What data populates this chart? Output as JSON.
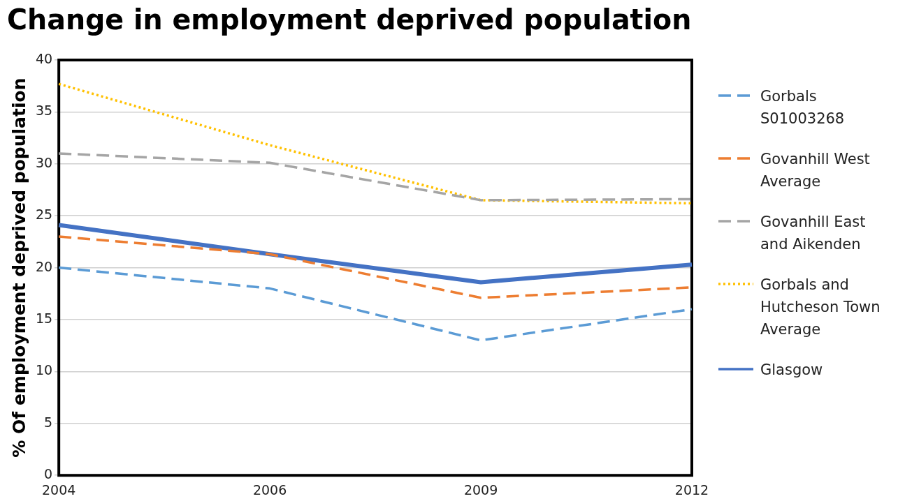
{
  "chart_data": {
    "type": "line",
    "title": "Change in employment deprived population",
    "ylabel": "% Of employment deprived population",
    "categories": [
      "2004",
      "2006",
      "2009",
      "2012"
    ],
    "series": [
      {
        "name": "Gorbals S01003268",
        "color": "#5b9bd5",
        "line_style": "dashed",
        "values": [
          20,
          18,
          13,
          16
        ]
      },
      {
        "name": "Govanhill West Average",
        "color": "#ed7d31",
        "line_style": "dashed",
        "values": [
          23,
          21.3,
          17.1,
          18.1
        ]
      },
      {
        "name": "Govanhill East and Aikenden",
        "color": "#a5a5a5",
        "line_style": "dashed",
        "values": [
          31,
          30.1,
          26.5,
          26.6
        ]
      },
      {
        "name": "Gorbals and Hutcheson Town Average",
        "color": "#ffc000",
        "line_style": "dotted",
        "values": [
          37.7,
          31.8,
          26.5,
          26.2
        ]
      },
      {
        "name": "Glasgow",
        "color": "#4472c4",
        "line_style": "solid",
        "values": [
          24.1,
          21.3,
          18.6,
          20.3
        ]
      }
    ],
    "ylim": [
      0,
      40
    ],
    "yticks": [
      0,
      5,
      10,
      15,
      20,
      25,
      30,
      35,
      40
    ],
    "grid": "y",
    "legend": "right",
    "marker": "none"
  }
}
